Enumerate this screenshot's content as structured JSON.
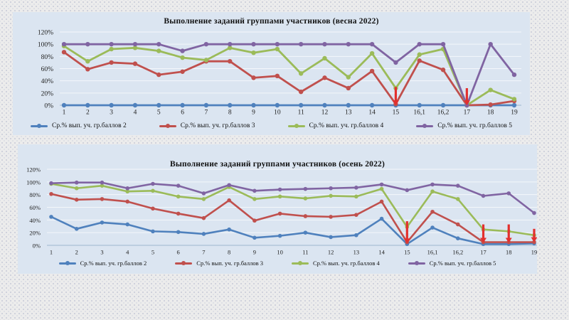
{
  "page": {
    "background_color": "#ececec",
    "panel_color": "#dbe5f1",
    "annotation_arrow_color": "#e3302e"
  },
  "chart_data": [
    {
      "type": "line",
      "title": "Выполнение заданий группами участников (весна 2022)",
      "categories": [
        "1",
        "2",
        "3",
        "4",
        "5",
        "6",
        "7",
        "8",
        "9",
        "10",
        "11",
        "12",
        "13",
        "14",
        "15",
        "16,1",
        "16,2",
        "17",
        "18",
        "19"
      ],
      "series": [
        {
          "name": "Ср.% вып. уч. гр.баллов 2",
          "color": "#4f81bd",
          "values": [
            0,
            0,
            0,
            0,
            0,
            0,
            0,
            0,
            0,
            0,
            0,
            0,
            0,
            0,
            0,
            0,
            0,
            0,
            0,
            0
          ]
        },
        {
          "name": "Ср.% вып. уч. гр.баллов 3",
          "color": "#c0504d",
          "values": [
            87,
            59,
            70,
            68,
            50,
            55,
            72,
            72,
            45,
            48,
            22,
            45,
            28,
            56,
            2,
            73,
            58,
            0,
            1,
            7
          ]
        },
        {
          "name": "Ср.% вып. уч. гр.баллов 4",
          "color": "#9bbb59",
          "values": [
            97,
            72,
            92,
            94,
            89,
            78,
            74,
            94,
            86,
            92,
            52,
            77,
            46,
            85,
            28,
            83,
            92,
            0,
            25,
            10
          ]
        },
        {
          "name": "Ср.% вып. уч. гр.баллов 5",
          "color": "#8064a2",
          "values": [
            100,
            100,
            100,
            100,
            100,
            89,
            100,
            100,
            100,
            100,
            100,
            100,
            100,
            100,
            70,
            100,
            100,
            0,
            100,
            50
          ]
        }
      ],
      "ylim": [
        0,
        120
      ],
      "yticks": [
        0,
        20,
        40,
        60,
        80,
        100,
        120
      ],
      "ytick_suffix": "%",
      "grid": true,
      "legend_position": "bottom",
      "annotations": [
        {
          "shape": "arrow-down",
          "category": "15",
          "from": 30,
          "to": 1
        },
        {
          "shape": "arrow-down",
          "category": "17",
          "from": 28,
          "to": 1
        }
      ]
    },
    {
      "type": "line",
      "title": "Выполнение заданий группами участников (осень 2022)",
      "categories": [
        "1",
        "2",
        "3",
        "4",
        "5",
        "6",
        "7",
        "8",
        "9",
        "10",
        "11",
        "12",
        "13",
        "14",
        "15",
        "16,1",
        "16,2",
        "17",
        "18",
        "19"
      ],
      "series": [
        {
          "name": "Ср.% вып. уч. гр.баллов 2",
          "color": "#4f81bd",
          "values": [
            45,
            26,
            36,
            33,
            22,
            21,
            18,
            25,
            12,
            15,
            20,
            13,
            16,
            42,
            2,
            28,
            11,
            2,
            2,
            3
          ]
        },
        {
          "name": "Ср.% вып. уч. гр.баллов 3",
          "color": "#c0504d",
          "values": [
            81,
            72,
            73,
            69,
            58,
            50,
            43,
            71,
            39,
            50,
            46,
            45,
            48,
            69,
            5,
            53,
            33,
            5,
            5,
            5
          ]
        },
        {
          "name": "Ср.% вып. уч. гр.баллов 4",
          "color": "#9bbb59",
          "values": [
            97,
            90,
            94,
            85,
            86,
            77,
            73,
            92,
            73,
            77,
            74,
            78,
            77,
            89,
            29,
            85,
            73,
            25,
            22,
            16
          ]
        },
        {
          "name": "Ср.% вып. уч. гр.баллов 5",
          "color": "#8064a2",
          "values": [
            98,
            99,
            99,
            90,
            97,
            94,
            82,
            95,
            86,
            88,
            89,
            90,
            91,
            96,
            87,
            96,
            94,
            78,
            82,
            51
          ]
        }
      ],
      "ylim": [
        0,
        120
      ],
      "yticks": [
        0,
        20,
        40,
        60,
        80,
        100,
        120
      ],
      "ytick_suffix": "%",
      "grid": true,
      "legend_position": "bottom",
      "annotations": [
        {
          "shape": "arrow-down",
          "category": "15",
          "from": 38,
          "to": 4
        },
        {
          "shape": "arrow-down",
          "category": "17",
          "from": 33,
          "to": 5
        },
        {
          "shape": "arrow-down",
          "category": "18",
          "from": 33,
          "to": 5
        },
        {
          "shape": "arrow-down",
          "category": "19",
          "from": 26,
          "to": 6
        }
      ]
    }
  ]
}
